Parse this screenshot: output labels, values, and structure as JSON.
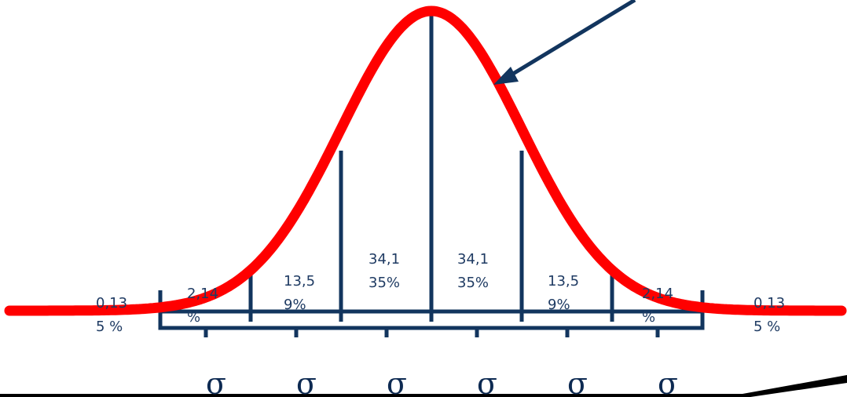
{
  "diagram": {
    "colors": {
      "curve": "#ff0000",
      "lines": "#12355e",
      "text": "#1f3b63",
      "baseline": "#000000"
    },
    "regions": [
      {
        "lines": [
          "0,13",
          "5 %"
        ]
      },
      {
        "lines": [
          "2,14",
          "%"
        ]
      },
      {
        "lines": [
          "13,5",
          "9%"
        ]
      },
      {
        "lines": [
          "34,1",
          "35%"
        ]
      },
      {
        "lines": [
          "34,1",
          "35%"
        ]
      },
      {
        "lines": [
          "13,5",
          "9%"
        ]
      },
      {
        "lines": [
          "2,14",
          "%"
        ]
      },
      {
        "lines": [
          "0,13",
          "5 %"
        ]
      }
    ],
    "sigma_symbol": "σ",
    "sigma_count": 6
  }
}
